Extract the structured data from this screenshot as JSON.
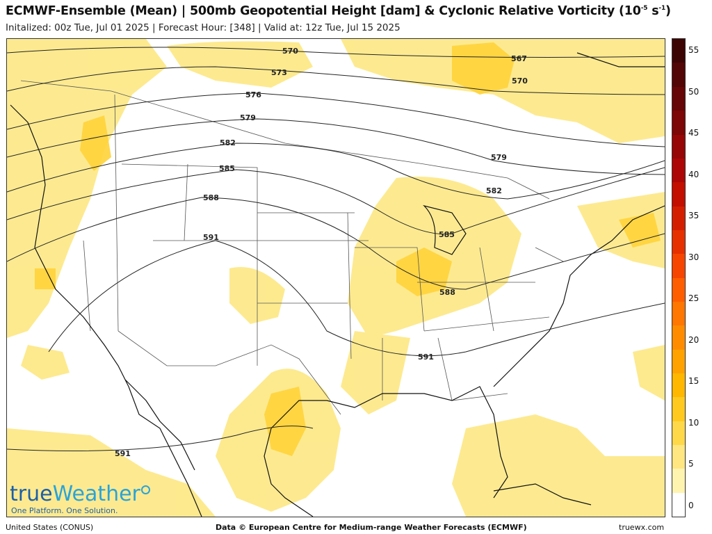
{
  "header": {
    "title_main": "ECMWF-Ensemble (Mean)  |  500mb Geopotential Height [dam] & Cyclonic Relative Vorticity (10",
    "title_exp": "-5",
    "title_mid": " s",
    "title_exp2": "-1",
    "title_end": ")",
    "subtitle": "Initalized: 00z Tue, Jul 01 2025  |  Forecast Hour: [348]  |  Valid at: 12z Tue, Jul 15 2025"
  },
  "colorbar": {
    "colors": [
      "#ffffff",
      "#fff3b0",
      "#ffe680",
      "#ffd84a",
      "#ffc91f",
      "#ffb700",
      "#ffa200",
      "#ff8c00",
      "#ff7600",
      "#ff5e00",
      "#f54500",
      "#e63000",
      "#d41e00",
      "#c20f00",
      "#ad0606",
      "#960606",
      "#7d0606",
      "#660606",
      "#520606",
      "#3d0404"
    ],
    "labels": [
      "0",
      "5",
      "10",
      "15",
      "20",
      "25",
      "30",
      "35",
      "40",
      "45",
      "50",
      "55"
    ]
  },
  "contours": {
    "labels": [
      "570",
      "573",
      "576",
      "579",
      "582",
      "585",
      "588",
      "591",
      "567",
      "570",
      "579",
      "582",
      "585",
      "588",
      "591",
      "591"
    ]
  },
  "logo": {
    "brand_true": "true",
    "brand_weather": "Weather",
    "tagline": "One Platform. One Solution."
  },
  "footer": {
    "region": "United States (CONUS)",
    "credit": "Data © European Centre for Medium-range Weather Forecasts (ECMWF)",
    "site": "truewx.com"
  }
}
